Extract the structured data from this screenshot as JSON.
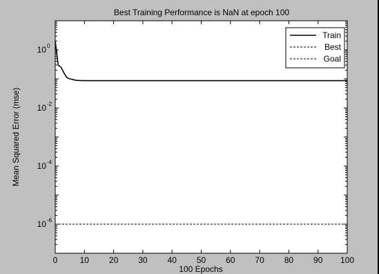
{
  "chart_data": {
    "type": "line",
    "title": "Best Training Performance is NaN at epoch 100",
    "xlabel": "100 Epochs",
    "ylabel": "Mean Squared Error  (mse)",
    "x_scale": "linear",
    "y_scale": "log",
    "xlim": [
      0,
      100
    ],
    "ylim": [
      1e-07,
      10
    ],
    "x_ticks": [
      0,
      10,
      20,
      30,
      40,
      50,
      60,
      70,
      80,
      90,
      100
    ],
    "y_ticks": [
      {
        "value": 1e-06,
        "base": "10",
        "exp": "-6"
      },
      {
        "value": 0.0001,
        "base": "10",
        "exp": "-4"
      },
      {
        "value": 0.01,
        "base": "10",
        "exp": "-2"
      },
      {
        "value": 1,
        "base": "10",
        "exp": "0"
      }
    ],
    "grid": false,
    "legend_position": "top-right",
    "series": [
      {
        "name": "Train",
        "color": "#000000",
        "style": "solid",
        "x": [
          0,
          0.5,
          1,
          2,
          3,
          4,
          5,
          6,
          7,
          8,
          10,
          15,
          20,
          30,
          40,
          50,
          60,
          70,
          80,
          90,
          100
        ],
        "y": [
          2.0,
          0.8,
          0.3,
          0.25,
          0.16,
          0.11,
          0.1,
          0.095,
          0.09,
          0.088,
          0.087,
          0.087,
          0.087,
          0.087,
          0.087,
          0.087,
          0.087,
          0.087,
          0.087,
          0.087,
          0.087
        ]
      },
      {
        "name": "Best",
        "color": "#000000",
        "style": "dotted",
        "x": [],
        "y": []
      },
      {
        "name": "Goal",
        "color": "#000000",
        "style": "dotted",
        "x": [
          0,
          100
        ],
        "y": [
          1e-06,
          1e-06
        ]
      }
    ]
  }
}
